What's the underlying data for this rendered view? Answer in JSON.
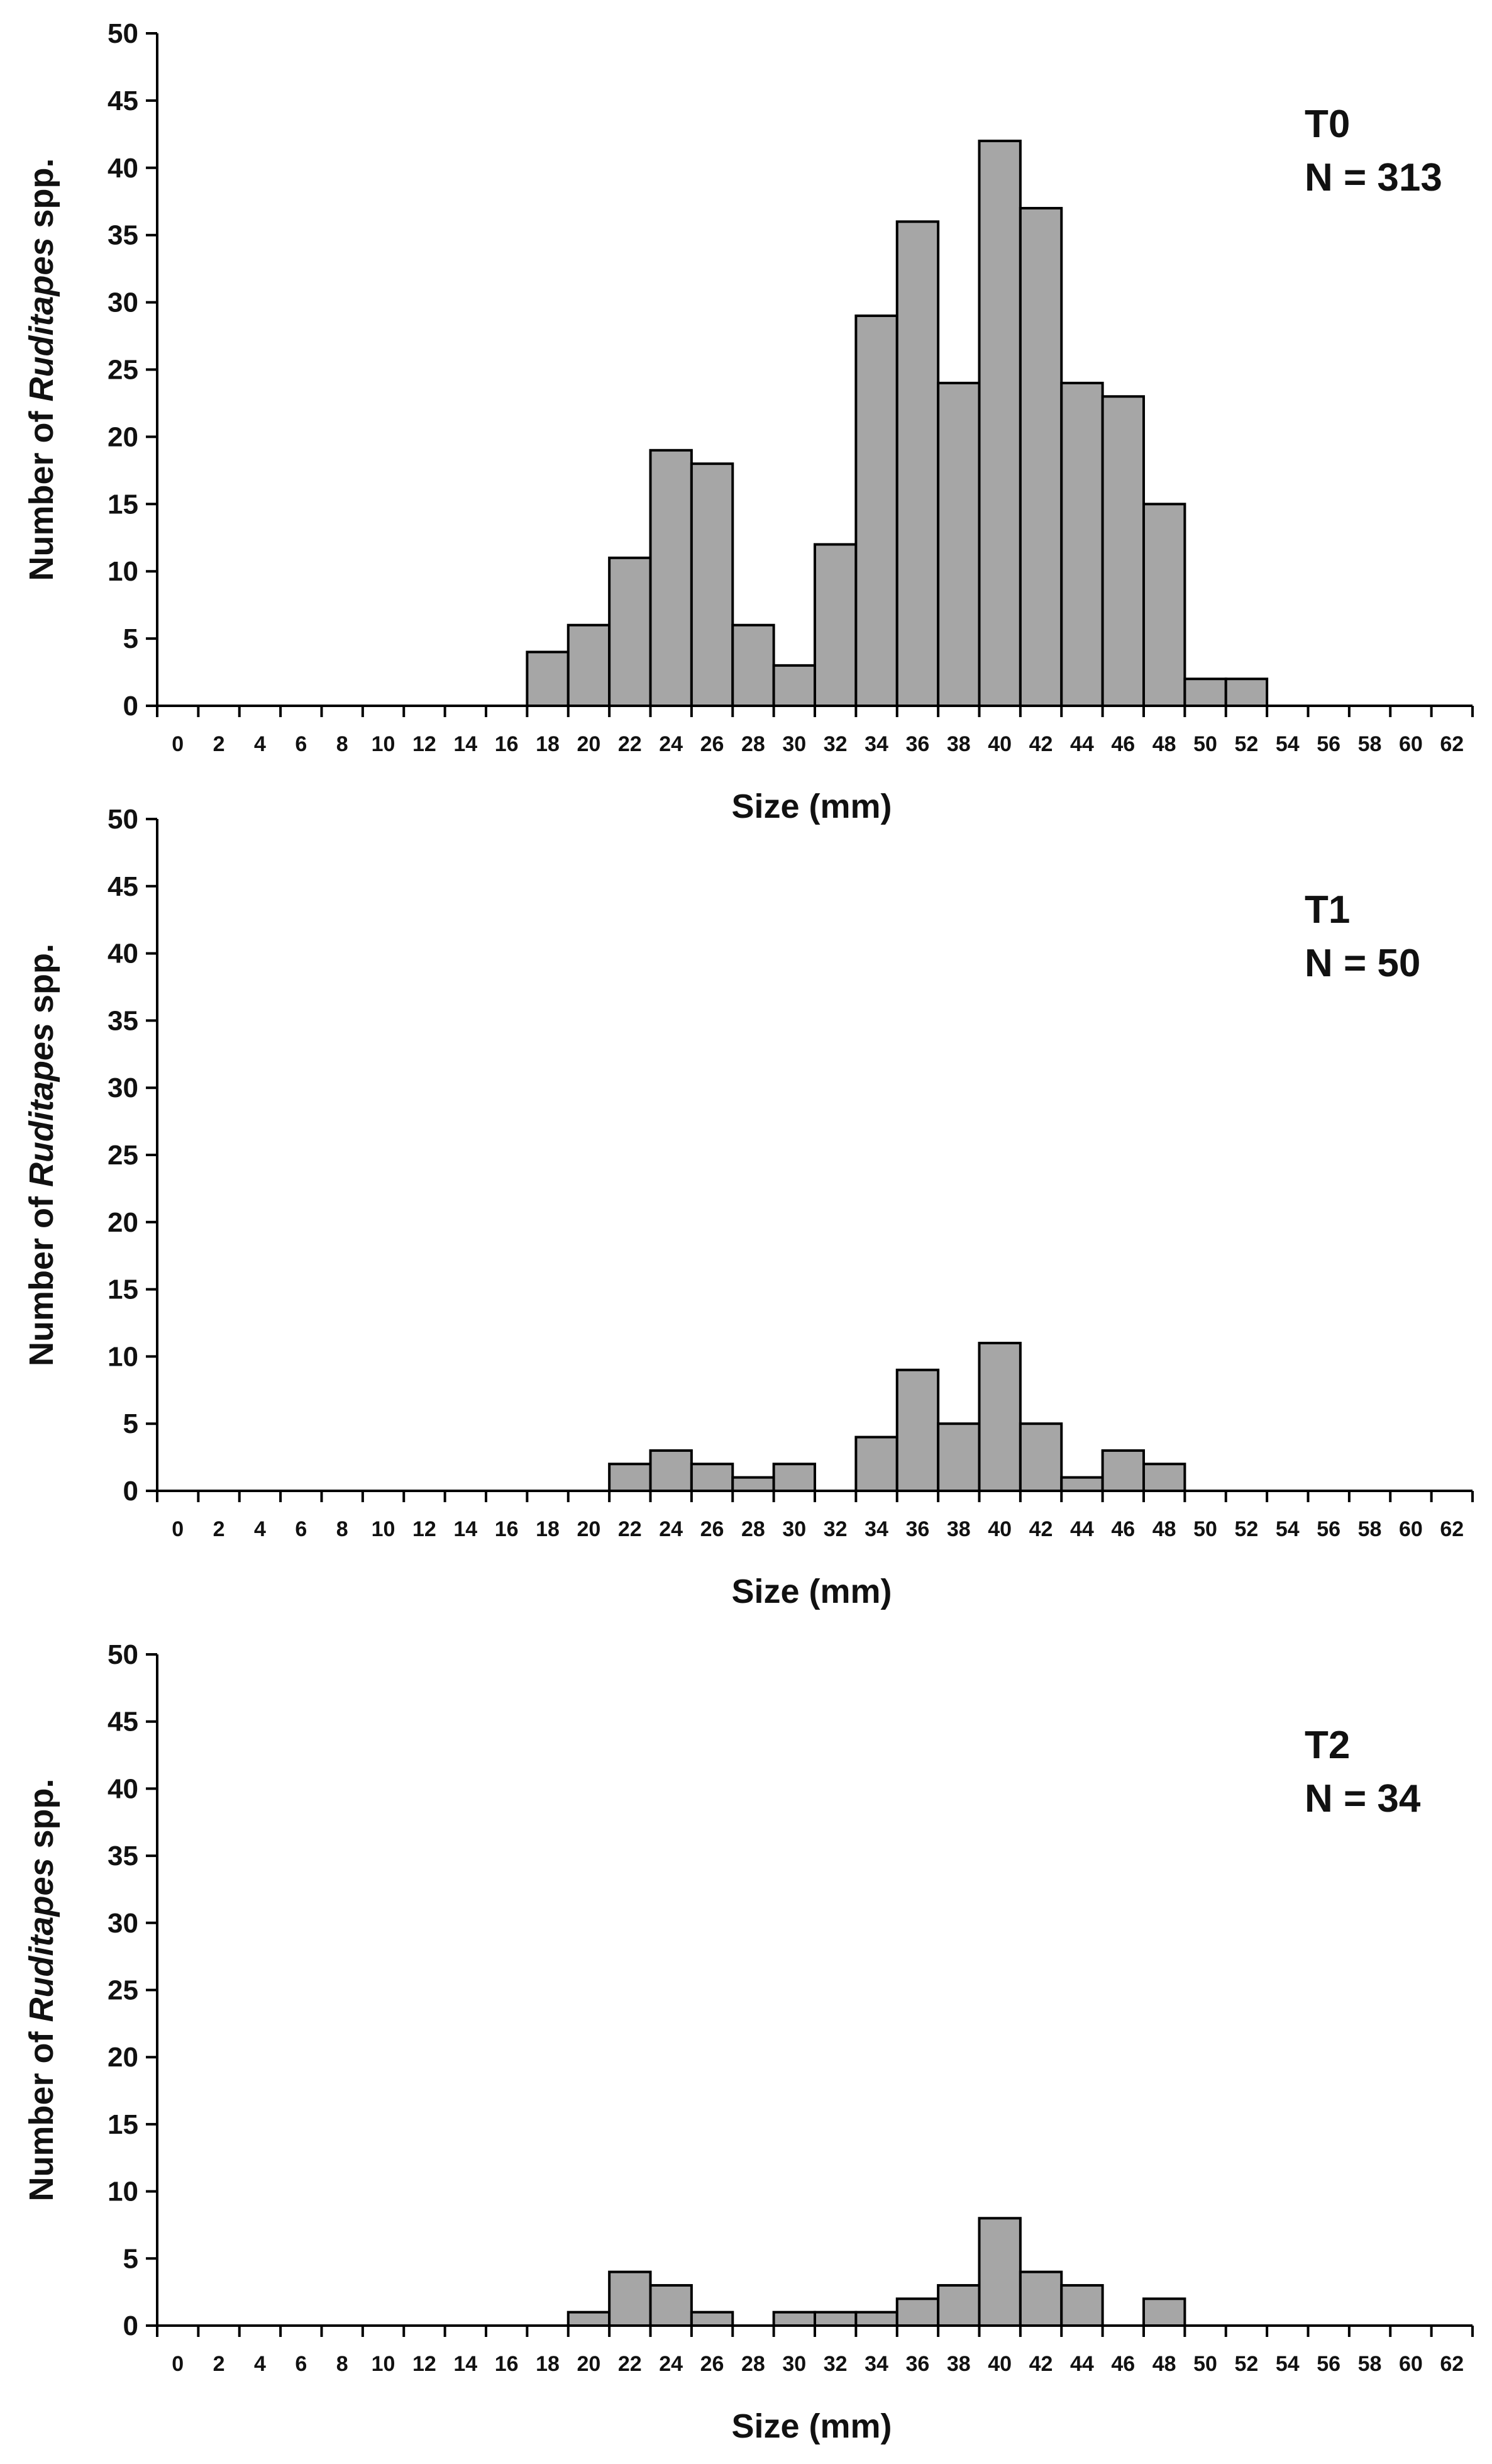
{
  "chart_data": [
    {
      "type": "bar",
      "panel_label": "T0",
      "n_label": "N = 313",
      "xlabel": "Size (mm)",
      "ylabel_prefix": "Number of ",
      "ylabel_italic": "Ruditapes",
      "ylabel_suffix": " spp.",
      "ylim": [
        0,
        50
      ],
      "yticks": [
        "0",
        "5",
        "10",
        "15",
        "20",
        "25",
        "30",
        "35",
        "40",
        "45",
        "50"
      ],
      "categories": [
        "0",
        "2",
        "4",
        "6",
        "8",
        "10",
        "12",
        "14",
        "16",
        "18",
        "20",
        "22",
        "24",
        "26",
        "28",
        "30",
        "32",
        "34",
        "36",
        "38",
        "40",
        "42",
        "44",
        "46",
        "48",
        "50",
        "52",
        "54",
        "56",
        "58",
        "60",
        "62"
      ],
      "values": [
        0,
        0,
        0,
        0,
        0,
        0,
        0,
        0,
        0,
        4,
        6,
        11,
        19,
        18,
        6,
        3,
        12,
        29,
        36,
        24,
        42,
        37,
        24,
        23,
        15,
        2,
        2,
        0,
        0,
        0,
        0,
        0
      ]
    },
    {
      "type": "bar",
      "panel_label": "T1",
      "n_label": "N = 50",
      "xlabel": "Size (mm)",
      "ylabel_prefix": "Number of ",
      "ylabel_italic": "Ruditapes",
      "ylabel_suffix": " spp.",
      "ylim": [
        0,
        50
      ],
      "yticks": [
        "0",
        "5",
        "10",
        "15",
        "20",
        "25",
        "30",
        "35",
        "40",
        "45",
        "50"
      ],
      "categories": [
        "0",
        "2",
        "4",
        "6",
        "8",
        "10",
        "12",
        "14",
        "16",
        "18",
        "20",
        "22",
        "24",
        "26",
        "28",
        "30",
        "32",
        "34",
        "36",
        "38",
        "40",
        "42",
        "44",
        "46",
        "48",
        "50",
        "52",
        "54",
        "56",
        "58",
        "60",
        "62"
      ],
      "values": [
        0,
        0,
        0,
        0,
        0,
        0,
        0,
        0,
        0,
        0,
        0,
        2,
        3,
        2,
        1,
        2,
        0,
        4,
        9,
        5,
        11,
        5,
        1,
        3,
        2,
        0,
        0,
        0,
        0,
        0,
        0,
        0
      ]
    },
    {
      "type": "bar",
      "panel_label": "T2",
      "n_label": "N = 34",
      "xlabel": "Size (mm)",
      "ylabel_prefix": "Number of ",
      "ylabel_italic": "Ruditapes",
      "ylabel_suffix": " spp.",
      "ylim": [
        0,
        50
      ],
      "yticks": [
        "0",
        "5",
        "10",
        "15",
        "20",
        "25",
        "30",
        "35",
        "40",
        "45",
        "50"
      ],
      "categories": [
        "0",
        "2",
        "4",
        "6",
        "8",
        "10",
        "12",
        "14",
        "16",
        "18",
        "20",
        "22",
        "24",
        "26",
        "28",
        "30",
        "32",
        "34",
        "36",
        "38",
        "40",
        "42",
        "44",
        "46",
        "48",
        "50",
        "52",
        "54",
        "56",
        "58",
        "60",
        "62"
      ],
      "values": [
        0,
        0,
        0,
        0,
        0,
        0,
        0,
        0,
        0,
        0,
        1,
        4,
        3,
        1,
        0,
        1,
        1,
        1,
        2,
        3,
        8,
        4,
        3,
        0,
        2,
        0,
        0,
        0,
        0,
        0,
        0,
        0
      ]
    }
  ],
  "style": {
    "bar_fill": "#a6a6a6",
    "bar_stroke": "#000000",
    "axis_color": "#000000"
  }
}
